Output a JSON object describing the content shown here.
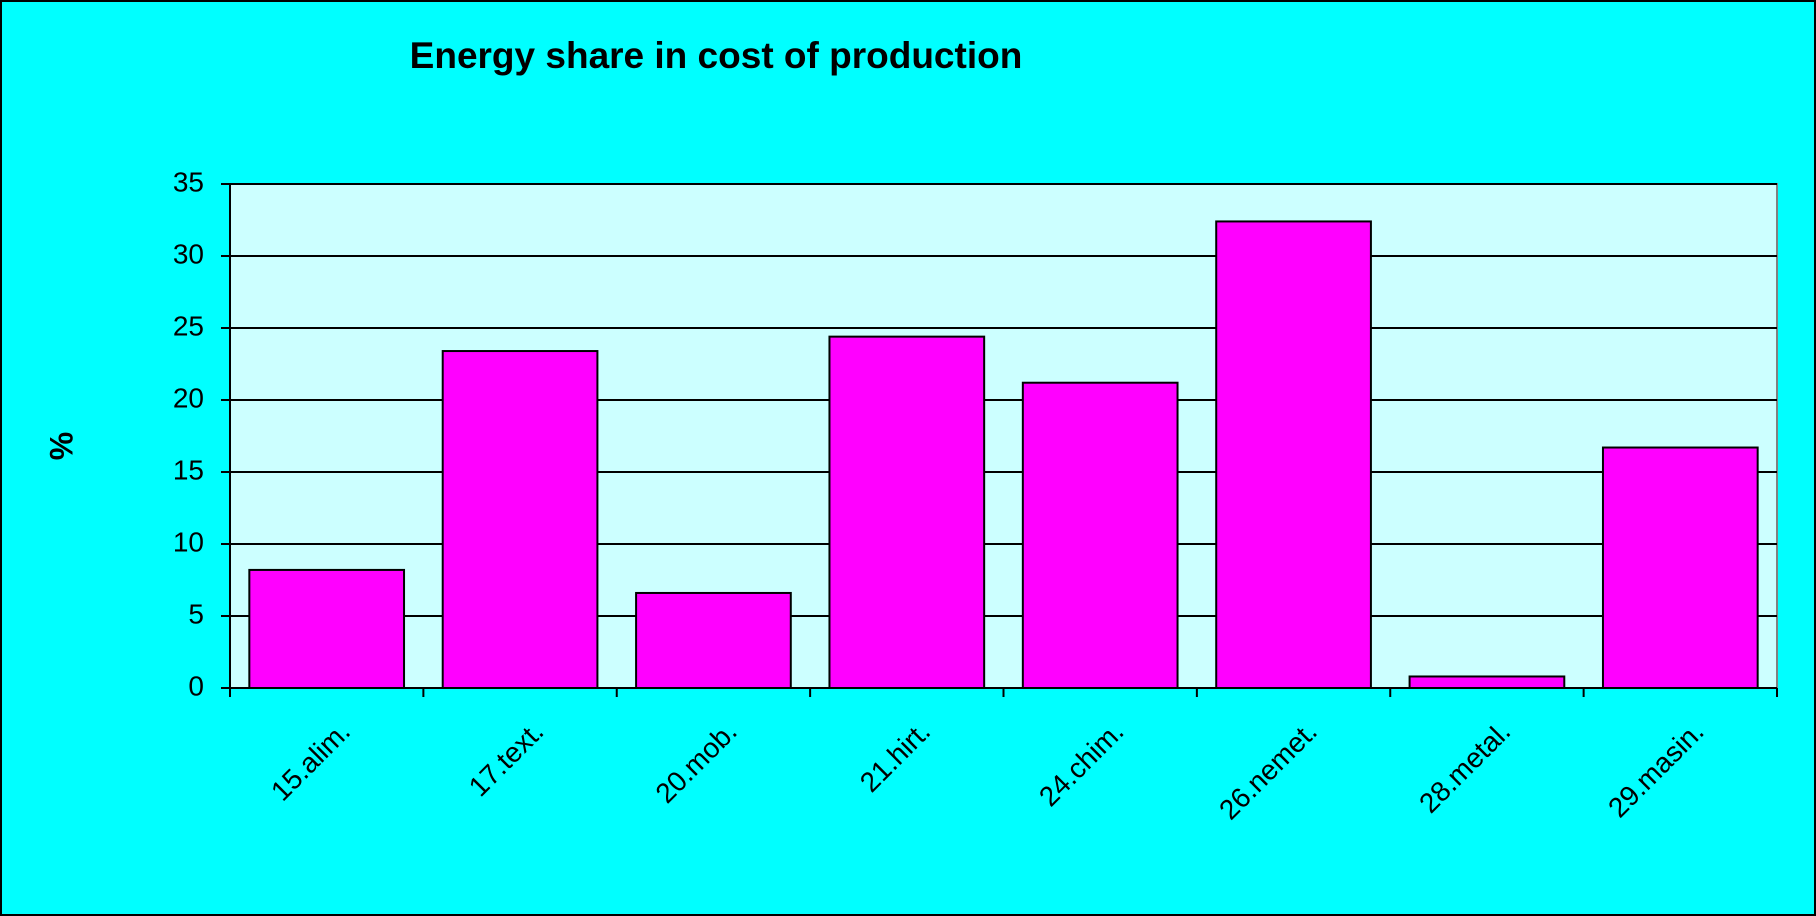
{
  "chart_data": {
    "type": "bar",
    "title": "Energy share in cost of production",
    "y_label": "%",
    "categories": [
      "15.alim.",
      "17.text.",
      "20.mob.",
      "21.hirt.",
      "24.chim.",
      "26.nemet.",
      "28.metal.",
      "29.masin."
    ],
    "values": [
      8.2,
      23.4,
      6.6,
      24.4,
      21.2,
      32.4,
      0.8,
      16.7
    ],
    "color": "#ff00ff",
    "ylim": [
      0,
      35
    ],
    "yticks": [
      0,
      5,
      10,
      15,
      20,
      25,
      30,
      35
    ],
    "grid": true
  }
}
